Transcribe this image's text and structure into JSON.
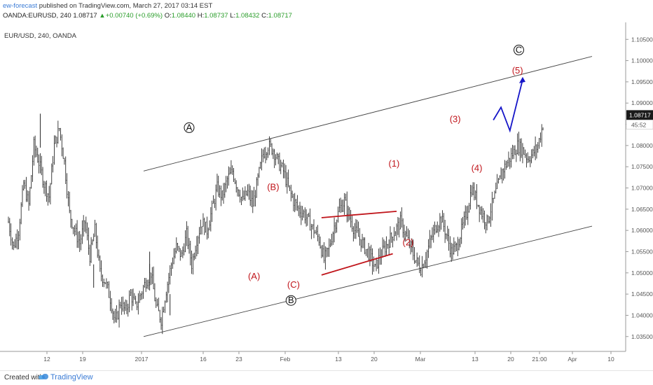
{
  "header": {
    "author": "ew-forecast",
    "published": "published on TradingView.com, March 27, 2017 03:14 EST",
    "symbol": "OANDA:EURUSD, 240",
    "last": "1.08717",
    "change_arrow": "▲",
    "change": "+0.00740 (+0.69%)",
    "o_label": "O:",
    "o": "1.08440",
    "h_label": "H:",
    "h": "1.08737",
    "l_label": "L:",
    "l": "1.08432",
    "c_label": "C:",
    "c": "1.08717"
  },
  "chart_label": "EUR/USD, 240, OANDA",
  "price_badge": {
    "price": "1.08717",
    "countdown": "45:52",
    "color": "#1a1a1a"
  },
  "footer": {
    "created_with": "Created with",
    "brand": "TradingView"
  },
  "colors": {
    "red": "#c0151b",
    "blue": "#1515c8",
    "line": "#444444",
    "candle": "#111111"
  },
  "chart_data": {
    "type": "candlestick",
    "y_ticks": [
      "1.10500",
      "1.10000",
      "1.09500",
      "1.09000",
      "1.08500",
      "1.08000",
      "1.07500",
      "1.07000",
      "1.06500",
      "1.06000",
      "1.05500",
      "1.05000",
      "1.04500",
      "1.04000",
      "1.03500"
    ],
    "ylim": [
      1.0315,
      1.109
    ],
    "x_ticks": [
      "12",
      "19",
      "2017",
      "16",
      "23",
      "Feb",
      "13",
      "20",
      "Mar",
      "13",
      "20",
      "21:00",
      "Apr",
      "10"
    ],
    "price_path": [
      [
        0,
        1.062
      ],
      [
        4,
        1.056
      ],
      [
        8,
        1.06
      ],
      [
        12,
        1.071
      ],
      [
        16,
        1.066
      ],
      [
        20,
        1.08
      ],
      [
        24,
        1.076
      ],
      [
        28,
        1.071
      ],
      [
        32,
        1.068
      ],
      [
        36,
        1.08
      ],
      [
        40,
        1.084
      ],
      [
        44,
        1.076
      ],
      [
        48,
        1.064
      ],
      [
        52,
        1.06
      ],
      [
        56,
        1.057
      ],
      [
        60,
        1.062
      ],
      [
        64,
        1.054
      ],
      [
        68,
        1.06
      ],
      [
        72,
        1.05
      ],
      [
        76,
        1.048
      ],
      [
        80,
        1.044
      ],
      [
        84,
        1.038
      ],
      [
        88,
        1.043
      ],
      [
        92,
        1.041
      ],
      [
        96,
        1.045
      ],
      [
        100,
        1.042
      ],
      [
        104,
        1.045
      ],
      [
        108,
        1.048
      ],
      [
        112,
        1.05
      ],
      [
        116,
        1.042
      ],
      [
        120,
        1.039
      ],
      [
        124,
        1.046
      ],
      [
        128,
        1.052
      ],
      [
        132,
        1.056
      ],
      [
        136,
        1.054
      ],
      [
        140,
        1.059
      ],
      [
        144,
        1.052
      ],
      [
        148,
        1.058
      ],
      [
        152,
        1.062
      ],
      [
        156,
        1.06
      ],
      [
        160,
        1.065
      ],
      [
        164,
        1.07
      ],
      [
        168,
        1.068
      ],
      [
        172,
        1.072
      ],
      [
        176,
        1.074
      ],
      [
        180,
        1.07
      ],
      [
        184,
        1.067
      ],
      [
        188,
        1.069
      ],
      [
        192,
        1.066
      ],
      [
        196,
        1.072
      ],
      [
        200,
        1.078
      ],
      [
        204,
        1.08
      ],
      [
        208,
        1.079
      ],
      [
        212,
        1.076
      ],
      [
        216,
        1.074
      ],
      [
        220,
        1.07
      ],
      [
        224,
        1.067
      ],
      [
        228,
        1.065
      ],
      [
        232,
        1.064
      ],
      [
        236,
        1.062
      ],
      [
        240,
        1.06
      ],
      [
        244,
        1.058
      ],
      [
        248,
        1.053
      ],
      [
        252,
        1.056
      ],
      [
        256,
        1.061
      ],
      [
        260,
        1.065
      ],
      [
        264,
        1.067
      ],
      [
        268,
        1.063
      ],
      [
        272,
        1.06
      ],
      [
        276,
        1.058
      ],
      [
        280,
        1.056
      ],
      [
        284,
        1.054
      ],
      [
        288,
        1.051
      ],
      [
        292,
        1.054
      ],
      [
        296,
        1.056
      ],
      [
        300,
        1.058
      ],
      [
        304,
        1.06
      ],
      [
        308,
        1.062
      ],
      [
        312,
        1.059
      ],
      [
        316,
        1.056
      ],
      [
        320,
        1.053
      ],
      [
        324,
        1.051
      ],
      [
        328,
        1.054
      ],
      [
        332,
        1.058
      ],
      [
        336,
        1.061
      ],
      [
        340,
        1.063
      ],
      [
        344,
        1.059
      ],
      [
        348,
        1.055
      ],
      [
        352,
        1.056
      ],
      [
        356,
        1.06
      ],
      [
        360,
        1.064
      ],
      [
        364,
        1.07
      ],
      [
        368,
        1.067
      ],
      [
        372,
        1.064
      ],
      [
        376,
        1.062
      ],
      [
        380,
        1.066
      ],
      [
        384,
        1.07
      ],
      [
        388,
        1.074
      ],
      [
        392,
        1.076
      ],
      [
        396,
        1.078
      ],
      [
        400,
        1.08
      ],
      [
        404,
        1.079
      ],
      [
        408,
        1.077
      ],
      [
        412,
        1.078
      ],
      [
        416,
        1.08
      ],
      [
        420,
        1.085
      ]
    ],
    "channel_upper": [
      [
        0,
        1.074
      ],
      [
        420,
        1.101
      ]
    ],
    "channel_lower": [
      [
        0,
        1.035
      ],
      [
        420,
        1.061
      ]
    ],
    "wave_labels_circled": [
      {
        "text": "A",
        "x": 142,
        "y": 1.0842
      },
      {
        "text": "B",
        "x": 222,
        "y": 1.0435
      },
      {
        "text": "C",
        "x": 401,
        "y": 1.1025
      }
    ],
    "wave_labels": [
      {
        "text": "(A)",
        "x": 193,
        "y": 1.0485
      },
      {
        "text": "(B)",
        "x": 208,
        "y": 1.0695
      },
      {
        "text": "(C)",
        "x": 224,
        "y": 1.0465
      },
      {
        "text": "(1)",
        "x": 303,
        "y": 1.075
      },
      {
        "text": "(2)",
        "x": 314,
        "y": 1.0565
      },
      {
        "text": "(3)",
        "x": 351,
        "y": 1.0855
      },
      {
        "text": "(4)",
        "x": 368,
        "y": 1.074
      },
      {
        "text": "(5)",
        "x": 400,
        "y": 1.097
      }
    ],
    "red_lines": [
      [
        [
          246,
          1.063
        ],
        [
          305,
          1.0645
        ]
      ],
      [
        [
          246,
          1.0495
        ],
        [
          302,
          1.0545
        ]
      ]
    ],
    "blue_projection": [
      [
        381,
        1.086
      ],
      [
        387,
        1.089
      ],
      [
        394,
        1.0835
      ],
      [
        404,
        1.0955
      ]
    ]
  }
}
